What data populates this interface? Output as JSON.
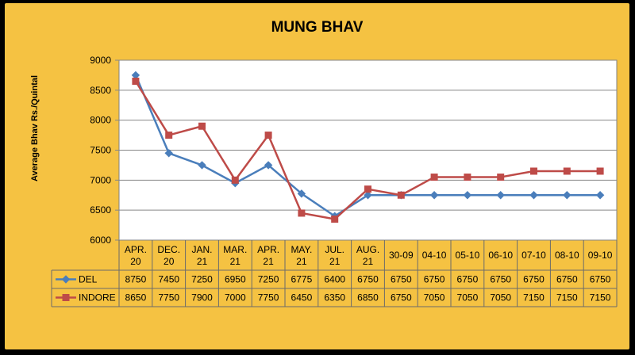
{
  "chart_data": {
    "type": "line",
    "title": "MUNG BHAV",
    "ylabel": "Average Bhav Rs./Quintal",
    "xlabel": "",
    "ylim": [
      6000,
      9000
    ],
    "yticks": [
      6000,
      6500,
      7000,
      7500,
      8000,
      8500,
      9000
    ],
    "grid": true,
    "legend": "left (data table)",
    "categories": [
      [
        "APR.",
        "20"
      ],
      [
        "DEC.",
        "20"
      ],
      [
        "JAN.",
        "21"
      ],
      [
        "MAR.",
        "21"
      ],
      [
        "APR.",
        "21"
      ],
      [
        "MAY.",
        "21"
      ],
      [
        "JUL.",
        "21"
      ],
      [
        "AUG.",
        "21"
      ],
      [
        "30-09"
      ],
      [
        "04-10"
      ],
      [
        "05-10"
      ],
      [
        "06-10"
      ],
      [
        "07-10"
      ],
      [
        "08-10"
      ],
      [
        "09-10"
      ]
    ],
    "series": [
      {
        "name": "DEL",
        "color": "#4A7EBB",
        "marker": "diamond",
        "values": [
          8750,
          7450,
          7250,
          6950,
          7250,
          6775,
          6400,
          6750,
          6750,
          6750,
          6750,
          6750,
          6750,
          6750,
          6750
        ]
      },
      {
        "name": "INDORE",
        "color": "#BE4B48",
        "marker": "square",
        "values": [
          8650,
          7750,
          7900,
          7000,
          7750,
          6450,
          6350,
          6850,
          6750,
          7050,
          7050,
          7050,
          7150,
          7150,
          7150
        ]
      }
    ]
  }
}
